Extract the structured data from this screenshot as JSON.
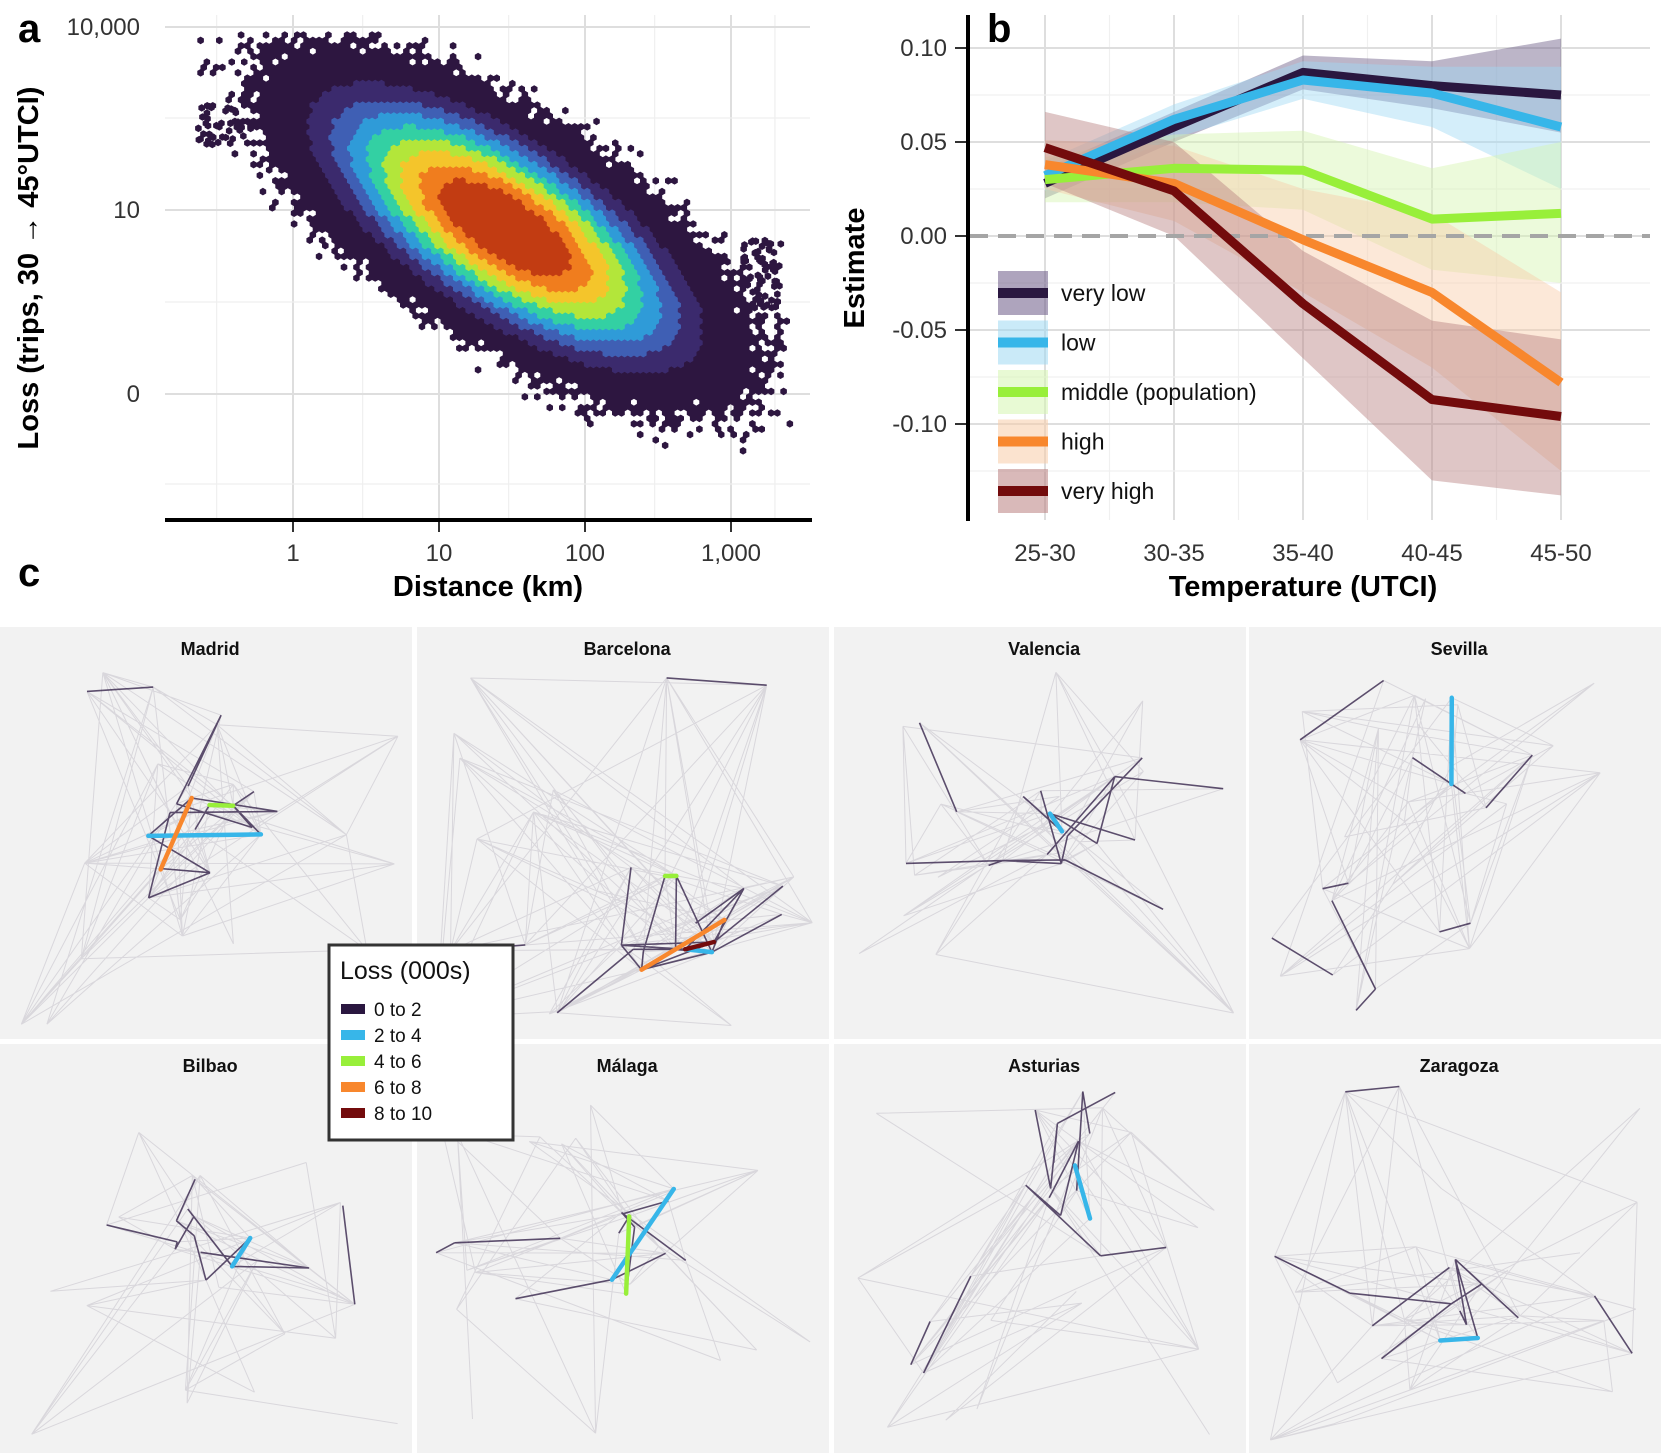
{
  "panels": {
    "a": "a",
    "b": "b",
    "c": "c"
  },
  "chart_data": [
    {
      "type": "heatmap",
      "panel": "a",
      "xlabel": "Distance (km)",
      "ylabel": "Loss (trips, 30 → 45°UTCI)",
      "x_scale": "log",
      "y_scale": "pseudo-log",
      "x_ticks": [
        1,
        10,
        100,
        1000
      ],
      "x_tick_labels": [
        "1",
        "10",
        "100",
        "1,000"
      ],
      "y_ticks": [
        0,
        10,
        10000
      ],
      "y_tick_labels": [
        "0",
        "10",
        "10,000"
      ],
      "xlim": [
        0.15,
        2500
      ],
      "density_peak": {
        "distance_km": 35,
        "loss": 7
      },
      "colormap": [
        "#2d1640",
        "#3b2a6d",
        "#3f5fb4",
        "#2f9bd8",
        "#33d0a3",
        "#b3e63a",
        "#f4c52b",
        "#f07d1e",
        "#c23c12"
      ]
    },
    {
      "type": "line",
      "panel": "b",
      "xlabel": "Temperature (UTCI)",
      "ylabel": "Estimate",
      "categories": [
        "25-30",
        "30-35",
        "35-40",
        "40-45",
        "45-50"
      ],
      "y_ticks": [
        0.1,
        0.05,
        0.0,
        -0.05,
        -0.1
      ],
      "y_tick_labels": [
        "0.10",
        "0.05",
        "0.00",
        "-0.05",
        "-0.10"
      ],
      "ylim": [
        -0.15,
        0.12
      ],
      "reference_line": 0,
      "series": [
        {
          "name": "very low",
          "color": "#2a1740",
          "band": "#6b5a86",
          "values": [
            0.028,
            0.058,
            0.087,
            0.08,
            0.075
          ],
          "lower": [
            0.02,
            0.05,
            0.078,
            0.068,
            0.055
          ],
          "upper": [
            0.036,
            0.066,
            0.096,
            0.093,
            0.105
          ]
        },
        {
          "name": "low",
          "color": "#37b6e9",
          "band": "#9fd9f3",
          "values": [
            0.032,
            0.062,
            0.083,
            0.076,
            0.058
          ],
          "lower": [
            0.024,
            0.052,
            0.073,
            0.058,
            0.025
          ],
          "upper": [
            0.04,
            0.07,
            0.093,
            0.09,
            0.09
          ]
        },
        {
          "name": "middle (population)",
          "color": "#98ef3a",
          "band": "#d5f5b0",
          "values": [
            0.03,
            0.036,
            0.035,
            0.009,
            0.012
          ],
          "lower": [
            0.018,
            0.018,
            0.014,
            -0.018,
            -0.025
          ],
          "upper": [
            0.042,
            0.054,
            0.056,
            0.036,
            0.05
          ]
        },
        {
          "name": "high",
          "color": "#f8872d",
          "band": "#f8cca8",
          "values": [
            0.038,
            0.028,
            -0.002,
            -0.03,
            -0.078
          ],
          "lower": [
            0.025,
            0.008,
            -0.03,
            -0.07,
            -0.125
          ],
          "upper": [
            0.051,
            0.048,
            0.025,
            0.012,
            -0.03
          ]
        },
        {
          "name": "very high",
          "color": "#730b0c",
          "band": "#b98080",
          "values": [
            0.047,
            0.024,
            -0.036,
            -0.087,
            -0.096
          ],
          "lower": [
            0.028,
            0.0,
            -0.065,
            -0.13,
            -0.138
          ],
          "upper": [
            0.066,
            0.05,
            -0.008,
            -0.045,
            -0.055
          ]
        }
      ]
    },
    {
      "type": "network-maps",
      "panel": "c",
      "legend_title": "Loss (000s)",
      "legend": [
        {
          "label": "0 to 2",
          "color": "#2a1740"
        },
        {
          "label": "2 to 4",
          "color": "#37b6e9"
        },
        {
          "label": "4 to 6",
          "color": "#98ef3a"
        },
        {
          "label": "6 to 8",
          "color": "#f8872d"
        },
        {
          "label": "8 to 10",
          "color": "#730b0c"
        }
      ],
      "maps": [
        {
          "name": "Madrid",
          "hot_edges": [
            2,
            3,
            4
          ]
        },
        {
          "name": "Barcelona",
          "hot_edges": [
            2,
            3,
            4,
            5
          ]
        },
        {
          "name": "Valencia",
          "hot_edges": [
            2
          ]
        },
        {
          "name": "Sevilla",
          "hot_edges": [
            2
          ]
        },
        {
          "name": "Bilbao",
          "hot_edges": [
            2
          ]
        },
        {
          "name": "Málaga",
          "hot_edges": [
            2,
            3
          ]
        },
        {
          "name": "Asturias",
          "hot_edges": [
            2
          ]
        },
        {
          "name": "Zaragoza",
          "hot_edges": [
            2
          ]
        }
      ]
    }
  ]
}
